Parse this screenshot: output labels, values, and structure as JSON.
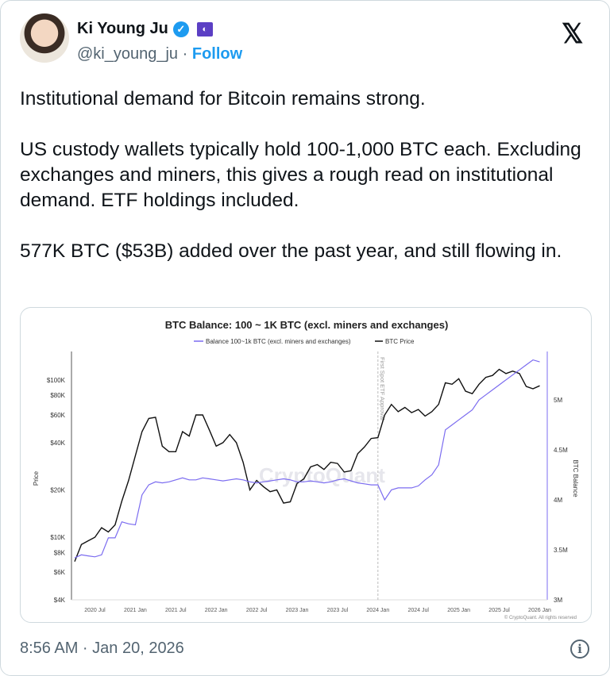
{
  "author": {
    "name": "Ki Young Ju",
    "handle": "@ki_young_ju",
    "separator": "·",
    "follow_label": "Follow",
    "verified": true,
    "affiliate_badge_icon": "cryptoquant-badge"
  },
  "platform_icon": "x-logo",
  "tweet_text": "Institutional demand for Bitcoin remains strong.\n\nUS custody wallets typically hold 100-1,000 BTC each. Excluding exchanges and miners, this gives a rough read on institutional demand. ETF holdings included.\n\n577K BTC ($53B) added over the past year, and still flowing in.",
  "timestamp": "8:56 AM · Jan 20, 2026",
  "chart_data": {
    "type": "line",
    "title": "BTC Balance: 100 ~ 1K BTC (excl. miners and exchanges)",
    "legend": [
      "Balance 100~1k BTC (excl. miners and exchanges)",
      "BTC Price"
    ],
    "legend_placement": "top-center",
    "ylabel": "Price",
    "y2label": "BTC Balance",
    "yscale": "log",
    "ylim": [
      4000,
      150000
    ],
    "yticks": [
      "$4K",
      "$6K",
      "$8K",
      "$10K",
      "$20K",
      "$40K",
      "$60K",
      "$80K",
      "$100K"
    ],
    "ytick_values": [
      4000,
      6000,
      8000,
      10000,
      20000,
      40000,
      60000,
      80000,
      100000
    ],
    "y2lim": [
      3000000,
      5500000
    ],
    "y2ticks": [
      "3M",
      "3.5M",
      "4M",
      "4.5M",
      "5M"
    ],
    "y2tick_values": [
      3000000,
      3500000,
      4000000,
      4500000,
      5000000
    ],
    "xticks": [
      "2020 Jul",
      "2021 Jan",
      "2021 Jul",
      "2022 Jan",
      "2022 Jul",
      "2023 Jan",
      "2023 Jul",
      "2024 Jan",
      "2024 Jul",
      "2025 Jan",
      "2025 Jul",
      "2026 Jan"
    ],
    "annotation": "First Spot ETF Approval",
    "annotation_date": "2024-01",
    "watermark": "CryptoQuant",
    "copyright": "© CryptoQuant. All rights reserved",
    "colors": {
      "balance": "#7b6cf0",
      "price": "#111111"
    },
    "x": [
      "2020-04",
      "2020-05",
      "2020-06",
      "2020-07",
      "2020-08",
      "2020-09",
      "2020-10",
      "2020-11",
      "2020-12",
      "2021-01",
      "2021-02",
      "2021-03",
      "2021-04",
      "2021-05",
      "2021-06",
      "2021-07",
      "2021-08",
      "2021-09",
      "2021-10",
      "2021-11",
      "2021-12",
      "2022-01",
      "2022-02",
      "2022-03",
      "2022-04",
      "2022-05",
      "2022-06",
      "2022-07",
      "2022-08",
      "2022-09",
      "2022-10",
      "2022-11",
      "2022-12",
      "2023-01",
      "2023-02",
      "2023-03",
      "2023-04",
      "2023-05",
      "2023-06",
      "2023-07",
      "2023-08",
      "2023-09",
      "2023-10",
      "2023-11",
      "2023-12",
      "2024-01",
      "2024-02",
      "2024-03",
      "2024-04",
      "2024-05",
      "2024-06",
      "2024-07",
      "2024-08",
      "2024-09",
      "2024-10",
      "2024-11",
      "2024-12",
      "2025-01",
      "2025-02",
      "2025-03",
      "2025-04",
      "2025-05",
      "2025-06",
      "2025-07",
      "2025-08",
      "2025-09",
      "2025-10",
      "2025-11",
      "2025-12",
      "2026-01"
    ],
    "series": [
      {
        "name": "BTC Price",
        "axis": "left",
        "values": [
          7000,
          9000,
          9500,
          10000,
          11500,
          10800,
          12000,
          17000,
          23000,
          33000,
          47000,
          57000,
          58000,
          38000,
          35000,
          35000,
          47000,
          44000,
          60000,
          60000,
          48000,
          38000,
          40000,
          45000,
          40000,
          30000,
          20000,
          23000,
          21000,
          19500,
          20000,
          16500,
          16800,
          22000,
          23500,
          28000,
          29000,
          27000,
          30000,
          29500,
          26000,
          26500,
          34000,
          37500,
          42500,
          43000,
          60000,
          70000,
          63000,
          67000,
          62000,
          65000,
          59000,
          63000,
          70000,
          96000,
          94000,
          102000,
          85000,
          82000,
          94000,
          104000,
          107000,
          117000,
          110000,
          114000,
          110000,
          91000,
          88000,
          92000
        ]
      },
      {
        "name": "Balance 100~1k BTC (excl. miners and exchanges)",
        "axis": "right",
        "values": [
          3420000,
          3450000,
          3440000,
          3430000,
          3450000,
          3620000,
          3620000,
          3780000,
          3760000,
          3750000,
          4050000,
          4150000,
          4180000,
          4170000,
          4180000,
          4200000,
          4220000,
          4200000,
          4200000,
          4220000,
          4210000,
          4200000,
          4190000,
          4200000,
          4210000,
          4200000,
          4180000,
          4170000,
          4180000,
          4190000,
          4200000,
          4210000,
          4200000,
          4180000,
          4180000,
          4190000,
          4180000,
          4170000,
          4180000,
          4200000,
          4210000,
          4190000,
          4170000,
          4160000,
          4150000,
          4150000,
          4000000,
          4100000,
          4120000,
          4120000,
          4120000,
          4140000,
          4200000,
          4250000,
          4350000,
          4700000,
          4750000,
          4800000,
          4850000,
          4900000,
          5000000,
          5050000,
          5100000,
          5150000,
          5200000,
          5250000,
          5300000,
          5350000,
          5400000,
          5380000
        ]
      }
    ]
  }
}
